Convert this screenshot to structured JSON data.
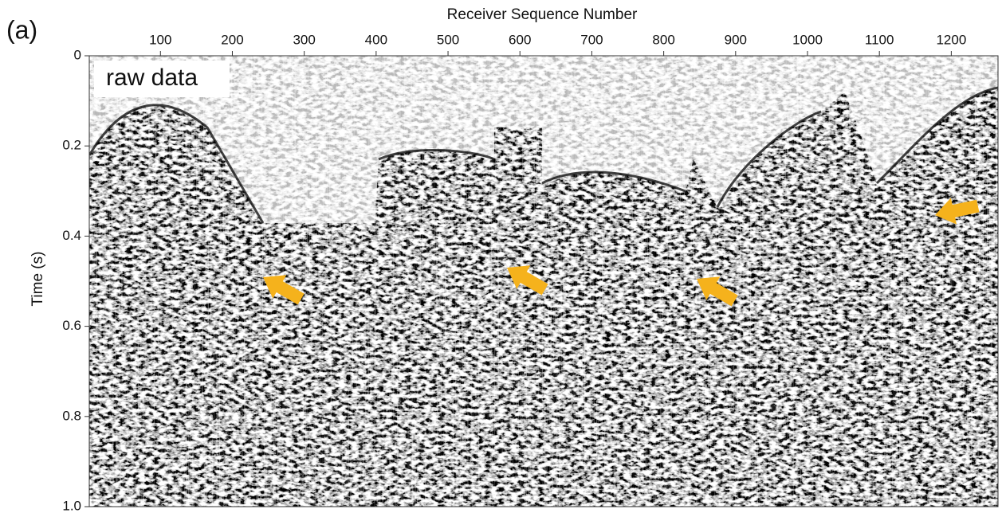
{
  "chart_data": {
    "type": "image",
    "panel_label": "(a)",
    "xlabel": "Receiver Sequence Number",
    "ylabel": "Time (s)",
    "annotation": "raw data",
    "xlim": [
      1,
      1265
    ],
    "xticks": [
      100,
      200,
      300,
      400,
      500,
      600,
      700,
      800,
      900,
      1000,
      1100,
      1200
    ],
    "x_axis_position": "top",
    "ylim": [
      0,
      1
    ],
    "yticks": [
      0,
      0.2,
      0.4,
      0.6,
      0.8,
      {
        "value": 1,
        "label": "1.0"
      }
    ],
    "y_inverted": true,
    "arrow_color": "#f5b21c"
  }
}
